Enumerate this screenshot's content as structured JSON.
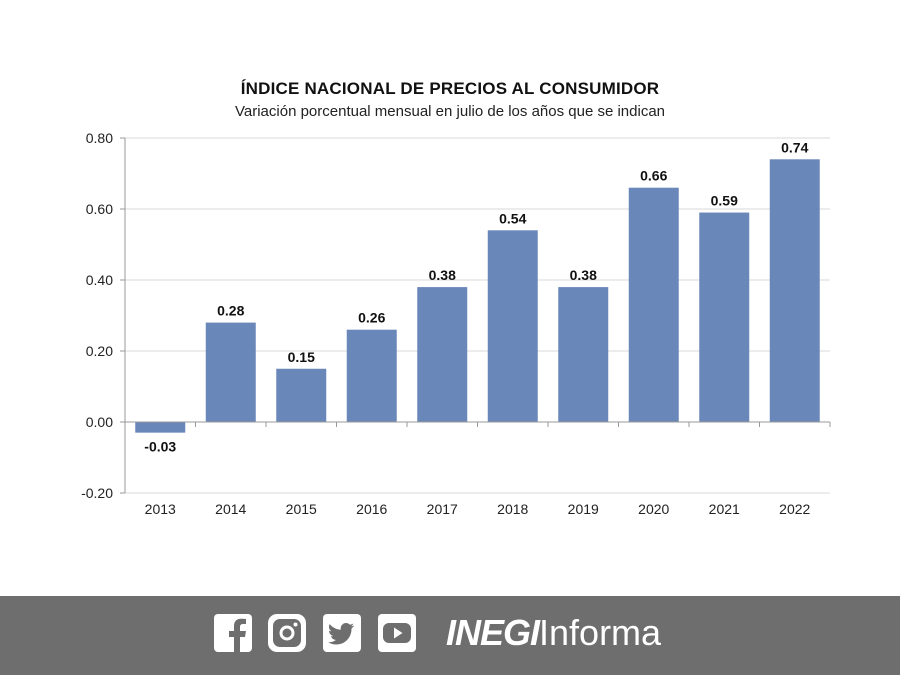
{
  "chart_data": {
    "type": "bar",
    "title": "ÍNDICE NACIONAL DE PRECIOS AL CONSUMIDOR",
    "subtitle": "Variación porcentual mensual en julio de los años que se indican",
    "categories": [
      "2013",
      "2014",
      "2015",
      "2016",
      "2017",
      "2018",
      "2019",
      "2020",
      "2021",
      "2022"
    ],
    "values": [
      -0.03,
      0.28,
      0.15,
      0.26,
      0.38,
      0.54,
      0.38,
      0.66,
      0.59,
      0.74
    ],
    "value_labels": [
      "-0.03",
      "0.28",
      "0.15",
      "0.26",
      "0.38",
      "0.54",
      "0.38",
      "0.66",
      "0.59",
      "0.74"
    ],
    "y_ticks": [
      -0.2,
      0.0,
      0.2,
      0.4,
      0.6,
      0.8
    ],
    "y_tick_labels": [
      "-0.20",
      "0.00",
      "0.20",
      "0.40",
      "0.60",
      "0.80"
    ],
    "ylim": [
      -0.2,
      0.8
    ],
    "grid": true,
    "bar_color": "#6a87ba"
  },
  "footer": {
    "brand_bold": "INEGI",
    "brand_light": "Informa",
    "icons": [
      "facebook-icon",
      "instagram-icon",
      "twitter-icon",
      "youtube-icon"
    ],
    "background": "#6e6e6e"
  }
}
